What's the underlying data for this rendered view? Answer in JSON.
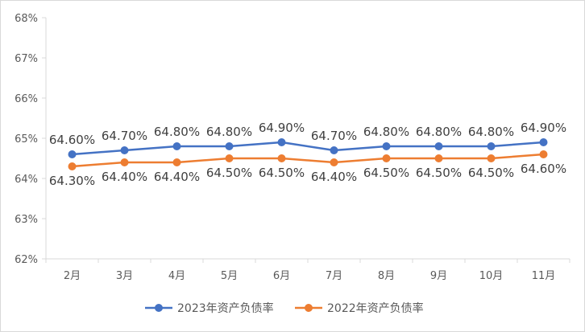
{
  "chart_data": {
    "type": "line",
    "categories": [
      "2月",
      "3月",
      "4月",
      "5月",
      "6月",
      "7月",
      "8月",
      "9月",
      "10月",
      "11月"
    ],
    "ylim": [
      62,
      68
    ],
    "yticks": [
      62,
      63,
      64,
      65,
      66,
      67,
      68
    ],
    "ytick_labels": [
      "62%",
      "63%",
      "64%",
      "65%",
      "66%",
      "67%",
      "68%"
    ],
    "grid": false,
    "legend_position": "bottom",
    "series": [
      {
        "name": "2023年资产负债率",
        "color": "#4472c4",
        "values": [
          64.6,
          64.7,
          64.8,
          64.8,
          64.9,
          64.7,
          64.8,
          64.8,
          64.8,
          64.9
        ],
        "labels": [
          "64.60%",
          "64.70%",
          "64.80%",
          "64.80%",
          "64.90%",
          "64.70%",
          "64.80%",
          "64.80%",
          "64.80%",
          "64.90%"
        ]
      },
      {
        "name": "2022年资产负债率",
        "color": "#ed7d31",
        "values": [
          64.3,
          64.4,
          64.4,
          64.5,
          64.5,
          64.4,
          64.5,
          64.5,
          64.5,
          64.6
        ],
        "labels": [
          "64.30%",
          "64.40%",
          "64.40%",
          "64.50%",
          "64.50%",
          "64.40%",
          "64.50%",
          "64.50%",
          "64.50%",
          "64.60%"
        ]
      }
    ]
  }
}
